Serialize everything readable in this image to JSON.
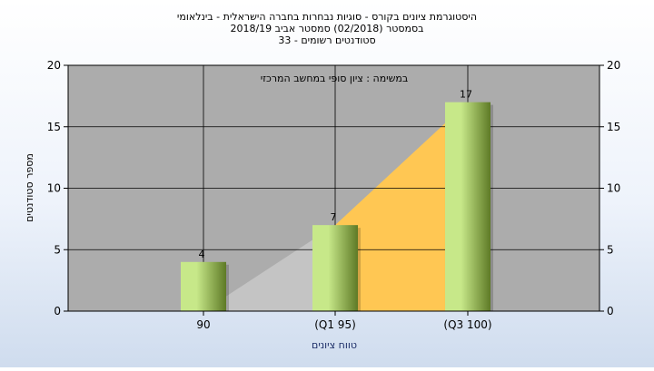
{
  "chart_data": {
    "type": "bar",
    "title_lines": [
      "היסטוגרמת ציונים בקורס - סוגיות נבחרות בחברה הישראלית - בינלאומי",
      "בסמסטר  (02/2018)  סמסטר אביב 2018/19",
      "סטודנטים רשומים - 33"
    ],
    "annotation": "במשימה : ציון סופי במחשב המרכזי",
    "categories": [
      "90",
      "(Q1 95)",
      "(Q3 100)"
    ],
    "values": [
      4,
      7,
      17
    ],
    "data_labels": [
      "4",
      "7",
      "17"
    ],
    "xlabel": "טווח ציונים",
    "ylabel": "מספר סטודנטים",
    "ylim": [
      0,
      20
    ],
    "yticks": [
      0,
      5,
      10,
      15,
      20
    ],
    "grid": true,
    "colors": {
      "plot_bg": "#acacac",
      "bar_light": "#c7e889",
      "bar_dark": "#5e7a26",
      "area_gray": "#c4c4c4",
      "area_orange": "#ffc753",
      "grid": "#000000",
      "text": "#000000",
      "xlabel_text": "#1a2c66"
    }
  }
}
